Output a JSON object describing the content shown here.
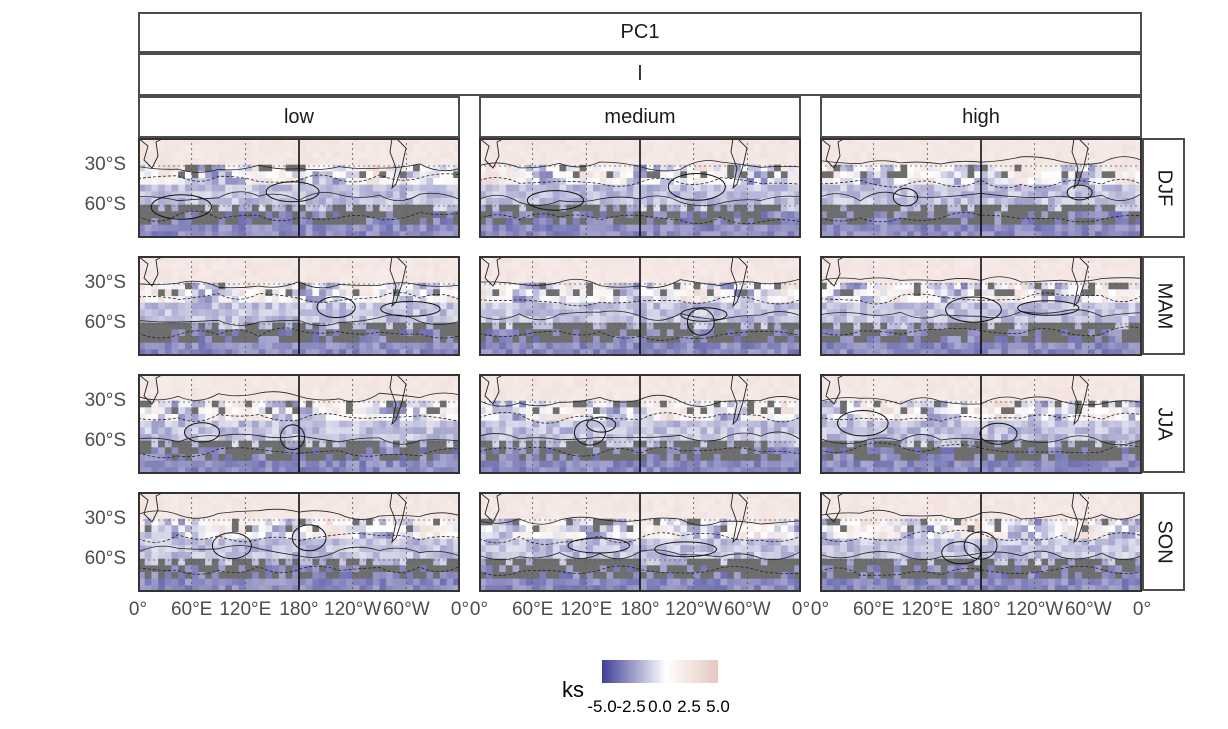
{
  "chart_data": {
    "type": "heatmap",
    "title": "PC1",
    "facet_top": "l",
    "columns": [
      "low",
      "medium",
      "high"
    ],
    "rows": [
      "DJF",
      "MAM",
      "JJA",
      "SON"
    ],
    "y_ticks": [
      "30°S",
      "60°S"
    ],
    "x_ticks": [
      "0°",
      "60°E",
      "120°E",
      "180°",
      "120°W",
      "60°W",
      "0°"
    ],
    "legend": {
      "title": "ks",
      "ticks": [
        "-5.0",
        "-2.5",
        "0.0",
        "2.5",
        "5.0"
      ],
      "range": [
        -5,
        5
      ],
      "colors": {
        "low": "#3f3f97",
        "mid": "#ffffff",
        "high": "#e6c7c0"
      }
    },
    "colors": {
      "dark_cells": "#6e6e6e",
      "strip_border": "#4d4d4d"
    }
  }
}
